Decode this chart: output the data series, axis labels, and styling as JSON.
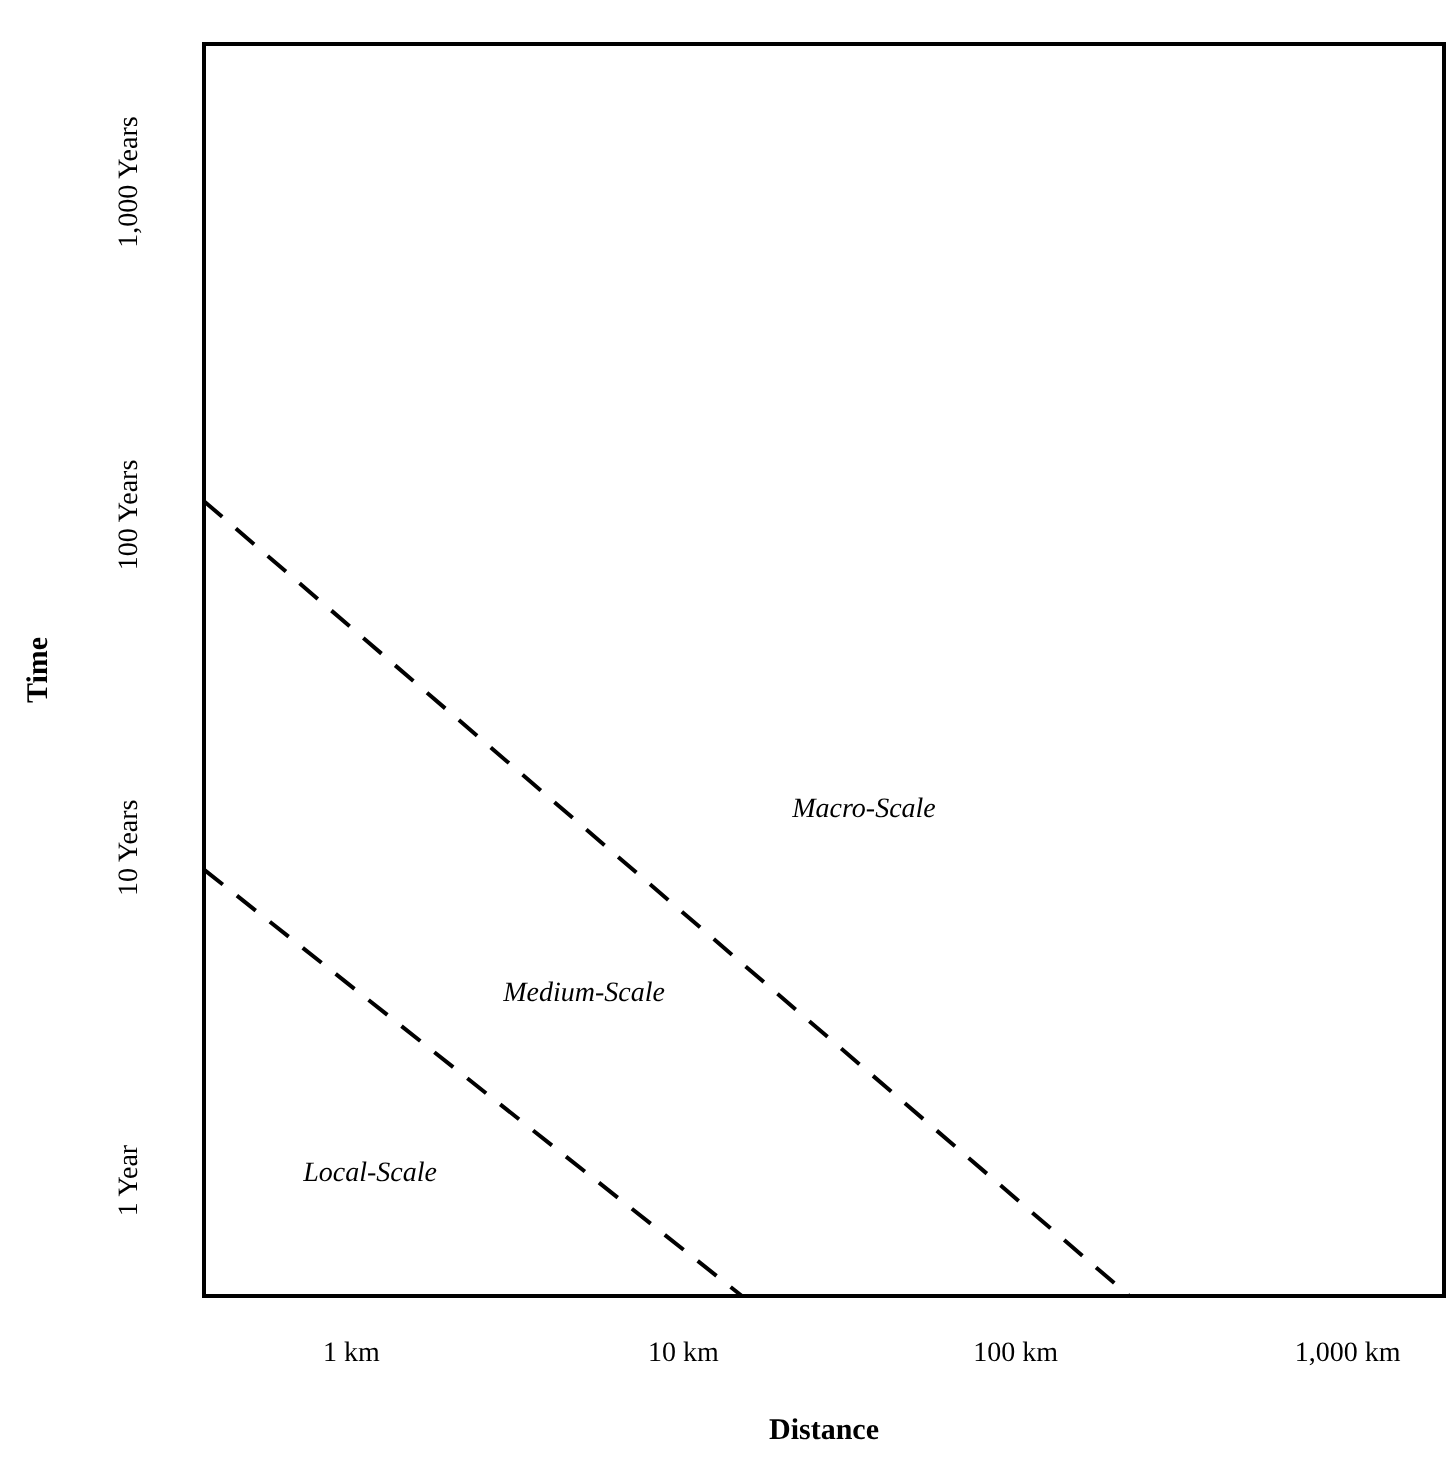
{
  "chart_data": {
    "type": "line",
    "xlabel": "Distance",
    "ylabel": "Time",
    "log": "xy",
    "xlim": [
      0.36,
      1950
    ],
    "ylim": [
      0.45,
      2600
    ],
    "xticks": [
      {
        "value": 1,
        "label": "1 km"
      },
      {
        "value": 10,
        "label": "10 km"
      },
      {
        "value": 100,
        "label": "100 km"
      },
      {
        "value": 1000,
        "label": "1,000 km"
      }
    ],
    "yticks": [
      {
        "value": 1,
        "label": "1 Year"
      },
      {
        "value": 10,
        "label": "10 Years"
      },
      {
        "value": 100,
        "label": "100 Years"
      },
      {
        "value": 1000,
        "label": "1,000 Years"
      }
    ],
    "series": [
      {
        "color": "#000000",
        "x": [
          0.36,
          220
        ],
        "values": [
          110,
          0.45
        ]
      },
      {
        "color": "#000000",
        "x": [
          0.36,
          15
        ],
        "values": [
          8.6,
          0.45
        ]
      }
    ],
    "line_style": "dashed",
    "marker": "none",
    "grid": false,
    "annotations": [
      "Macro-Scale",
      "Medium-Scale",
      "Local-Scale"
    ]
  }
}
